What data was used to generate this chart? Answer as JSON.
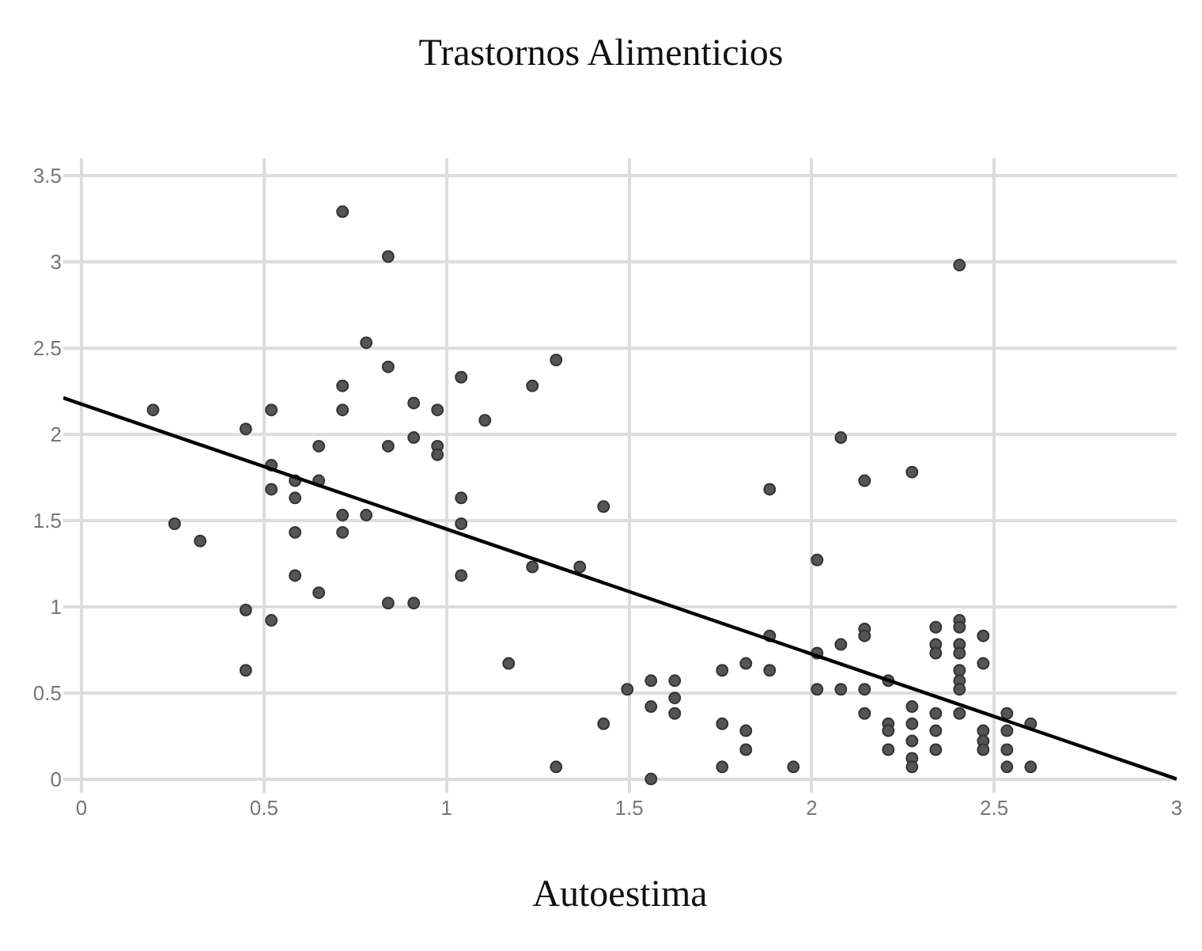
{
  "chart_data": {
    "type": "scatter",
    "title": "Trastornos Alimenticios",
    "xlabel": "Autoestima",
    "xlim": [
      -0.05,
      3
    ],
    "ylim": [
      -0.08,
      3.6
    ],
    "xticks": [
      0,
      0.5,
      1,
      1.5,
      2,
      2.5,
      3
    ],
    "yticks": [
      0,
      0.5,
      1,
      1.5,
      2,
      2.5,
      3,
      3.5
    ],
    "grid": true,
    "marker": "circle",
    "series": [
      {
        "color": "#555555",
        "x": [
          0.715,
          0.84,
          0.78,
          0.84,
          0.715,
          0.196,
          0.52,
          0.715,
          0.45,
          0.65,
          0.84,
          0.52,
          0.585,
          0.65,
          0.52,
          0.585,
          0.715,
          0.78,
          0.255,
          0.325,
          0.585,
          0.715,
          0.585,
          0.65,
          0.45,
          0.52,
          0.84,
          0.45,
          1.04,
          1.3,
          1.235,
          0.91,
          0.975,
          1.105,
          0.91,
          0.975,
          0.975,
          1.04,
          1.04,
          1.43,
          1.04,
          1.235,
          1.365,
          0.91,
          1.17,
          1.885,
          1.885,
          1.885,
          1.495,
          1.56,
          1.625,
          1.625,
          1.56,
          1.625,
          1.43,
          1.755,
          1.82,
          1.755,
          1.82,
          1.82,
          1.755,
          1.3,
          1.56,
          2.405,
          2.08,
          2.145,
          2.275,
          2.015,
          2.015,
          2.08,
          2.145,
          2.145,
          2.015,
          2.08,
          2.145,
          2.21,
          2.145,
          2.21,
          2.21,
          2.21,
          2.275,
          2.275,
          2.275,
          2.275,
          2.275,
          2.34,
          2.34,
          2.34,
          2.34,
          2.34,
          2.34,
          2.405,
          2.405,
          2.405,
          2.405,
          2.405,
          2.405,
          2.405,
          2.405,
          2.47,
          2.47,
          2.47,
          2.47,
          2.47,
          2.535,
          2.535,
          2.535,
          2.535,
          2.6,
          2.6,
          1.95
        ],
        "values": [
          3.29,
          3.03,
          2.53,
          2.39,
          2.28,
          2.14,
          2.14,
          2.14,
          2.03,
          1.93,
          1.93,
          1.82,
          1.73,
          1.73,
          1.68,
          1.63,
          1.53,
          1.53,
          1.48,
          1.38,
          1.43,
          1.43,
          1.18,
          1.08,
          0.98,
          0.92,
          1.02,
          0.63,
          2.33,
          2.43,
          2.28,
          2.18,
          2.14,
          2.08,
          1.98,
          1.93,
          1.88,
          1.63,
          1.48,
          1.58,
          1.18,
          1.23,
          1.23,
          1.02,
          0.67,
          1.68,
          0.83,
          0.63,
          0.52,
          0.57,
          0.57,
          0.47,
          0.42,
          0.38,
          0.32,
          0.63,
          0.67,
          0.32,
          0.28,
          0.17,
          0.07,
          0.07,
          0,
          2.98,
          1.98,
          1.73,
          1.78,
          1.27,
          0.73,
          0.78,
          0.87,
          0.83,
          0.52,
          0.52,
          0.52,
          0.57,
          0.38,
          0.32,
          0.28,
          0.17,
          0.42,
          0.32,
          0.22,
          0.12,
          0.07,
          0.88,
          0.78,
          0.73,
          0.38,
          0.28,
          0.17,
          0.92,
          0.88,
          0.78,
          0.73,
          0.63,
          0.57,
          0.52,
          0.38,
          0.83,
          0.67,
          0.28,
          0.22,
          0.17,
          0.38,
          0.28,
          0.17,
          0.07,
          0.32,
          0.07,
          0.07
        ]
      },
      {
        "type": "line",
        "color": "#000000",
        "marker": "none",
        "line_style": "solid",
        "x": [
          -0.05,
          3
        ],
        "values": [
          2.21,
          0
        ]
      }
    ]
  }
}
